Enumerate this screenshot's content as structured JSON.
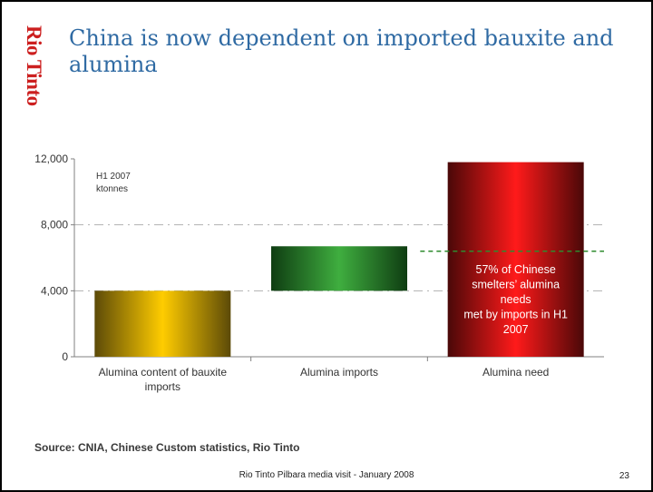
{
  "slide": {
    "logo": "Rio Tinto",
    "title": "China is now dependent on imported bauxite and alumina",
    "source": "Source: CNIA, Chinese Custom statistics, Rio Tinto",
    "footer": "Rio Tinto Pilbara media visit - January 2008",
    "page_number": "23"
  },
  "chart_data": {
    "type": "bar",
    "subtype": "waterfall",
    "title": "",
    "unit_note": [
      "H1 2007",
      "ktonnes"
    ],
    "categories": [
      "Alumina content of bauxite imports",
      "Alumina imports",
      "Alumina need"
    ],
    "category_lines": [
      [
        "Alumina content of bauxite",
        "imports"
      ],
      [
        "Alumina imports"
      ],
      [
        "Alumina need"
      ]
    ],
    "bars": [
      {
        "category": "Alumina content of bauxite imports",
        "base": 0,
        "value": 4000,
        "color": "#ffcc00",
        "edge_color": "#5c4a08"
      },
      {
        "category": "Alumina imports",
        "base": 4000,
        "value": 2700,
        "color": "#3fae3f",
        "edge_color": "#0f3d12"
      },
      {
        "category": "Alumina need",
        "base": 0,
        "value": 11800,
        "color": "#ff1a1a",
        "edge_color": "#4a0808"
      }
    ],
    "y_ticks": [
      "0",
      "4,000",
      "8,000",
      "12,000"
    ],
    "y_tick_values": [
      0,
      4000,
      8000,
      12000
    ],
    "ylim": [
      0,
      12000
    ],
    "grid": true,
    "reference_line": {
      "value": 6400,
      "color": "#2e8b2e"
    },
    "annotation": [
      "57% of Chinese",
      "smelters’ alumina",
      "needs",
      "met by imports in H1",
      "2007"
    ],
    "annotation_color": "#ffffff",
    "colors": {
      "axis": "#808080",
      "grid": "#b0b0b0",
      "text": "#333333"
    }
  }
}
